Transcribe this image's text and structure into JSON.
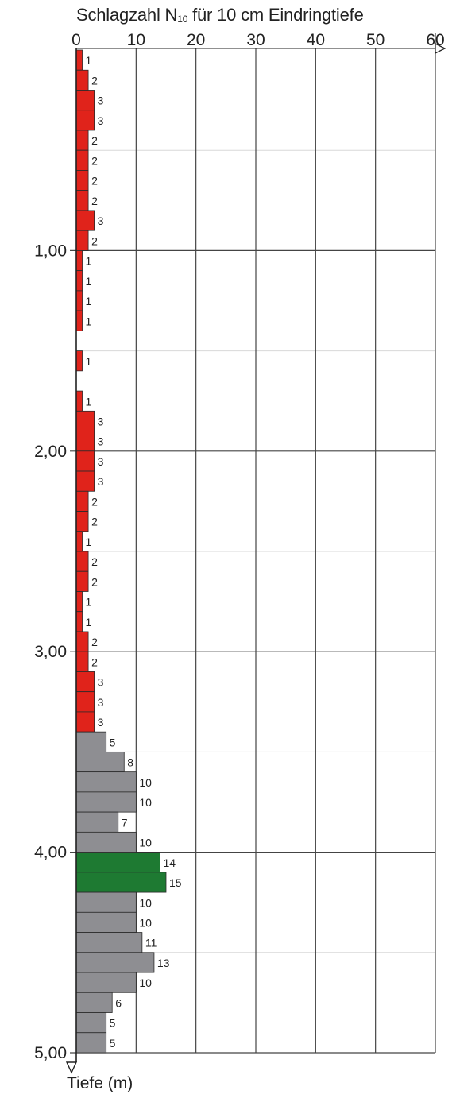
{
  "chart_data": {
    "type": "bar",
    "orientation": "horizontal",
    "title_prefix": "Schlagzahl N",
    "title_subscript": "10",
    "title_suffix": " für 10 cm Eindringtiefe",
    "ylabel": "Tiefe (m)",
    "xlim": [
      0,
      60
    ],
    "ylim": [
      0,
      5
    ],
    "x_ticks": [
      "0",
      "10",
      "20",
      "30",
      "40",
      "50",
      "60"
    ],
    "y_ticks": [
      {
        "value": 1,
        "label": "1,00"
      },
      {
        "value": 2,
        "label": "2,00"
      },
      {
        "value": 3,
        "label": "3,00"
      },
      {
        "value": 4,
        "label": "4,00"
      },
      {
        "value": 5,
        "label": "5,00"
      }
    ],
    "grid": true,
    "interval_m": 0.1,
    "colors": {
      "red": "#e0231b",
      "gray": "#8e8e92",
      "green": "#1e7a32",
      "grid": "#444444",
      "minor_grid": "#d8d8d8"
    },
    "values": [
      1,
      2,
      3,
      3,
      2,
      2,
      2,
      2,
      3,
      2,
      1,
      1,
      1,
      1,
      null,
      1,
      null,
      1,
      3,
      3,
      3,
      3,
      2,
      2,
      1,
      2,
      2,
      1,
      1,
      2,
      2,
      3,
      3,
      3,
      5,
      8,
      10,
      10,
      7,
      10,
      14,
      15,
      10,
      10,
      11,
      13,
      10,
      6,
      5,
      5
    ],
    "soil_class": [
      "red",
      "red",
      "red",
      "red",
      "red",
      "red",
      "red",
      "red",
      "red",
      "red",
      "red",
      "red",
      "red",
      "red",
      "red",
      "red",
      "red",
      "red",
      "red",
      "red",
      "red",
      "red",
      "red",
      "red",
      "red",
      "red",
      "red",
      "red",
      "red",
      "red",
      "red",
      "red",
      "red",
      "red",
      "gray",
      "gray",
      "gray",
      "gray",
      "gray",
      "gray",
      "green",
      "green",
      "gray",
      "gray",
      "gray",
      "gray",
      "gray",
      "gray",
      "gray",
      "gray"
    ]
  }
}
